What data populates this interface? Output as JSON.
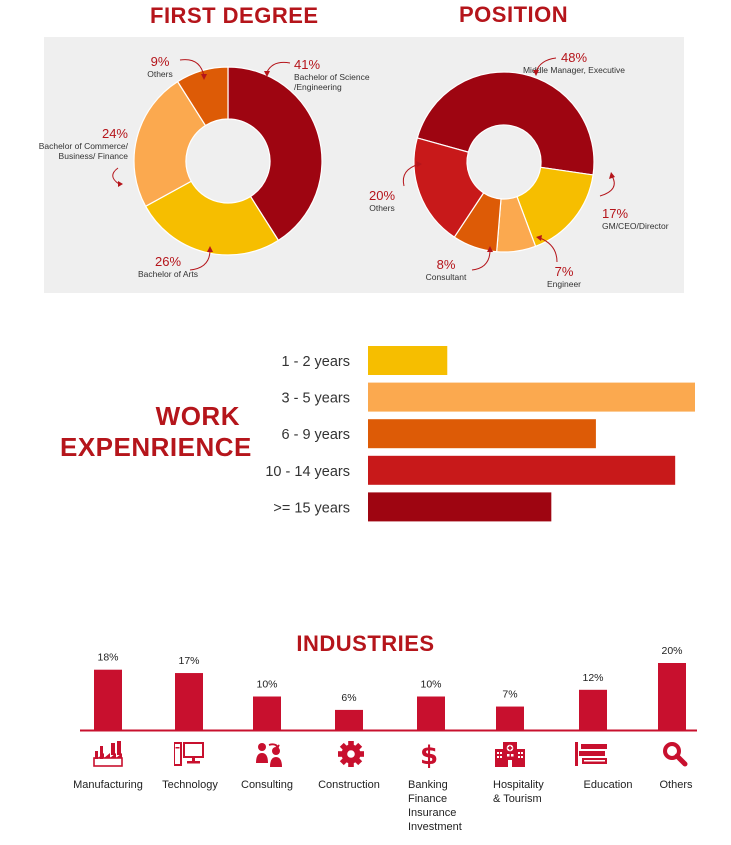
{
  "colors": {
    "gold": "#f6be00",
    "light_orange": "#fba94f",
    "orange": "#dd5b06",
    "red": "#c8191a",
    "dark_red": "#9e0511",
    "industry_bar": "#c8102e",
    "title": "#b5151b"
  },
  "chart_data": [
    {
      "type": "pie",
      "title": "FIRST DEGREE",
      "slices": [
        {
          "value": 41,
          "pct": "41%",
          "label": "Bachelor of Science /Engineering",
          "label_lines": [
            "Bachelor of Science",
            "/Engineering"
          ],
          "color": "#9e0511"
        },
        {
          "value": 26,
          "pct": "26%",
          "label": "Bachelor of Arts",
          "label_lines": [
            "Bachelor of Arts"
          ],
          "color": "#f6be00"
        },
        {
          "value": 24,
          "pct": "24%",
          "label": "Bachelor of Commerce/ Business/ Finance",
          "label_lines": [
            "Bachelor of Commerce/",
            "Business/ Finance"
          ],
          "color": "#fba94f"
        },
        {
          "value": 9,
          "pct": "9%",
          "label": "Others",
          "label_lines": [
            "Others"
          ],
          "color": "#dd5b06"
        }
      ]
    },
    {
      "type": "pie",
      "title": "POSITION",
      "slices": [
        {
          "value": 48,
          "pct": "48%",
          "label": "Middle Manager, Executive",
          "label_lines": [
            "Middle Manager,  Executive"
          ],
          "color": "#9e0511"
        },
        {
          "value": 17,
          "pct": "17%",
          "label": "GM/CEO/Director",
          "label_lines": [
            "GM/CEO/Director"
          ],
          "color": "#f6be00"
        },
        {
          "value": 7,
          "pct": "7%",
          "label": "Engineer",
          "label_lines": [
            "Engineer"
          ],
          "color": "#fba94f"
        },
        {
          "value": 8,
          "pct": "8%",
          "label": "Consultant",
          "label_lines": [
            "Consultant"
          ],
          "color": "#dd5b06"
        },
        {
          "value": 20,
          "pct": "20%",
          "label": "Others",
          "label_lines": [
            "Others"
          ],
          "color": "#c8191a"
        }
      ]
    },
    {
      "type": "bar",
      "orientation": "horizontal",
      "title": "WORK EXPENRIENCE",
      "title_lines": [
        "WORK",
        "EXPENRIENCE"
      ],
      "categories": [
        "1 - 2 years",
        "3 - 5 years",
        "6 - 9 years",
        "10 - 14 years",
        ">= 15 years"
      ],
      "values": [
        8,
        33,
        23,
        31,
        18.5
      ],
      "colors": [
        "#f6be00",
        "#fba94f",
        "#dd5b06",
        "#c8191a",
        "#9e0511"
      ],
      "xlim": [
        0,
        33
      ]
    },
    {
      "type": "bar",
      "title": "INDUSTRIES",
      "categories": [
        "Manufacturing",
        "Technology",
        "Consulting",
        "Construction",
        "Banking Finance Insurance Investment",
        "Hospitality & Tourism",
        "Education",
        "Others"
      ],
      "category_lines": [
        [
          "Manufacturing"
        ],
        [
          "Technology"
        ],
        [
          "Consulting"
        ],
        [
          "Construction"
        ],
        [
          "Banking",
          "Finance",
          "Insurance",
          "Investment"
        ],
        [
          "Hospitality",
          "& Tourism"
        ],
        [
          "Education"
        ],
        [
          "Others"
        ]
      ],
      "values": [
        18,
        17,
        10,
        6,
        10,
        7,
        12,
        20
      ],
      "value_labels": [
        "18%",
        "17%",
        "10%",
        "6%",
        "10%",
        "7%",
        "12%",
        "20%"
      ],
      "icons": [
        "factory-icon",
        "computer-icon",
        "handshake-icon",
        "gear-icon",
        "dollar-icon",
        "hotel-icon",
        "books-icon",
        "magnifier-icon"
      ],
      "ylim": [
        0,
        20
      ]
    }
  ]
}
